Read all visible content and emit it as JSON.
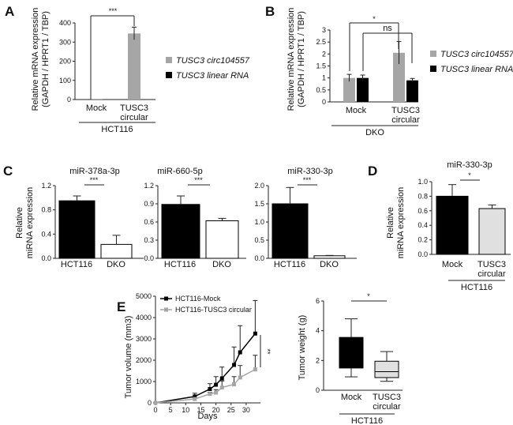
{
  "chart_data": [
    {
      "panel": "A",
      "type": "bar",
      "ylabel_lines": [
        "Relative mRNA expression",
        "(GAPDH / HPRT1 / TBP)"
      ],
      "ylim": [
        0,
        400
      ],
      "yticks": [
        "0",
        "100",
        "200",
        "300",
        "400"
      ],
      "categories": [
        [
          "Mock"
        ],
        [
          "TUSC3",
          "circular"
        ]
      ],
      "group_label": "HCT116",
      "series": [
        {
          "name": "TUSC3 circ104557",
          "color": "#a6a6a6",
          "values": [
            1,
            345
          ],
          "errors": [
            0,
            33
          ]
        },
        {
          "name": "TUSC3 linear RNA",
          "color": "#000000",
          "values": [
            null,
            null
          ],
          "errors": [
            0,
            0
          ]
        }
      ],
      "significance": [
        {
          "label": "***",
          "from": "Mock",
          "to": "TUSC3 circular"
        }
      ],
      "legend": "right"
    },
    {
      "panel": "B",
      "type": "bar",
      "ylabel_lines": [
        "Relative mRNA expression",
        "(GAPDH / HPRT1 / TBP)"
      ],
      "ylim": [
        0,
        3
      ],
      "yticks": [
        "0",
        "0.5",
        "1",
        "1.5",
        "2",
        "2.5",
        "3"
      ],
      "categories": [
        [
          "Mock"
        ],
        [
          "TUSC3",
          "circular"
        ]
      ],
      "group_label": "DKO",
      "series": [
        {
          "name": "TUSC3 circ104557",
          "color": "#a6a6a6",
          "values": [
            1.0,
            2.05
          ],
          "errors": [
            0.15,
            0.47
          ]
        },
        {
          "name": "TUSC3 linear RNA",
          "color": "#000000",
          "values": [
            1.0,
            0.9
          ],
          "errors": [
            0.12,
            0.08
          ]
        }
      ],
      "significance": [
        {
          "label": "*"
        },
        {
          "label": "ns"
        }
      ],
      "legend": "right"
    },
    {
      "panel": "C",
      "type": "bar",
      "title": "miR-378a-3p",
      "ylabel_lines": [
        "Relative",
        "miRNA expression"
      ],
      "ylim": [
        0,
        1.2
      ],
      "yticks": [
        "0.0",
        "0.4",
        "0.8",
        "1.2"
      ],
      "categories": [
        "HCT116",
        "DKO"
      ],
      "values": [
        0.95,
        0.23
      ],
      "errors": [
        0.08,
        0.15
      ],
      "colors": [
        "#000000",
        "#ffffff"
      ],
      "significance": "***"
    },
    {
      "panel": "C2",
      "type": "bar",
      "title": "miR-660-5p",
      "ylim": [
        0,
        1.2
      ],
      "yticks": [
        "0.0",
        "0.3",
        "0.6",
        "0.9",
        "1.2"
      ],
      "categories": [
        "HCT116",
        "DKO"
      ],
      "values": [
        0.89,
        0.62
      ],
      "errors": [
        0.14,
        0.04
      ],
      "colors": [
        "#000000",
        "#ffffff"
      ],
      "significance": "***"
    },
    {
      "panel": "C3",
      "type": "bar",
      "title": "miR-330-3p",
      "ylim": [
        0,
        2.0
      ],
      "yticks": [
        "0.0",
        "0.5",
        "1.0",
        "1.5",
        "2.0"
      ],
      "categories": [
        "HCT116",
        "DKO"
      ],
      "values": [
        1.5,
        0.07
      ],
      "errors": [
        0.45,
        0.01
      ],
      "colors": [
        "#000000",
        "#ffffff"
      ],
      "significance": "***"
    },
    {
      "panel": "D",
      "type": "bar",
      "title": "miR-330-3p",
      "ylabel_lines": [
        "Relative",
        "miRNA expression"
      ],
      "ylim": [
        0,
        1.0
      ],
      "yticks": [
        "0.0",
        "0.2",
        "0.4",
        "0.6",
        "0.8",
        "1.0"
      ],
      "categories": [
        [
          "Mock"
        ],
        [
          "TUSC3",
          "circular"
        ]
      ],
      "group_label": "HCT116",
      "values": [
        0.8,
        0.63
      ],
      "errors": [
        0.16,
        0.05
      ],
      "colors": [
        "#000000",
        "#e0e0e0"
      ],
      "significance": "*"
    },
    {
      "panel": "E",
      "type": "line",
      "xlabel": "Days",
      "ylabel": "Tumor volume (mm3)",
      "xlim": [
        0,
        35
      ],
      "ylim": [
        0,
        5000
      ],
      "xticks": [
        "0",
        "5",
        "10",
        "15",
        "20",
        "25",
        "30"
      ],
      "yticks": [
        "0",
        "1000",
        "2000",
        "3000",
        "4000",
        "5000"
      ],
      "x": [
        0,
        13,
        18,
        20,
        22,
        26,
        28,
        33
      ],
      "series": [
        {
          "name": "HCT116-Mock",
          "color": "#000000",
          "values": [
            0,
            300,
            650,
            850,
            1150,
            1780,
            2370,
            3250
          ],
          "errors": [
            0,
            150,
            250,
            380,
            530,
            840,
            1250,
            1550
          ]
        },
        {
          "name": "HCT116-TUSC3 circular",
          "color": "#a6a6a6",
          "values": [
            0,
            180,
            420,
            480,
            720,
            870,
            1190,
            1570
          ],
          "errors": [
            0,
            60,
            80,
            140,
            310,
            360,
            560,
            660
          ]
        }
      ],
      "significance": "**",
      "legend": "top-left"
    },
    {
      "panel": "E2",
      "type": "box",
      "ylabel": "Tumor weight (g)",
      "ylim": [
        0,
        6
      ],
      "yticks": [
        "0",
        "2",
        "4",
        "6"
      ],
      "categories": [
        [
          "Mock"
        ],
        [
          "TUSC3",
          "circular"
        ]
      ],
      "group_label": "HCT116",
      "boxes": [
        {
          "min": 0.9,
          "q1": 1.5,
          "median": 1.5,
          "q3": 3.55,
          "max": 4.8,
          "color": "#000000"
        },
        {
          "min": 0.6,
          "q1": 0.85,
          "median": 1.25,
          "q3": 1.95,
          "max": 2.6,
          "color": "#e0e0e0"
        }
      ],
      "significance": "*"
    }
  ],
  "panel_labels": [
    "A",
    "B",
    "C",
    "D",
    "E"
  ]
}
